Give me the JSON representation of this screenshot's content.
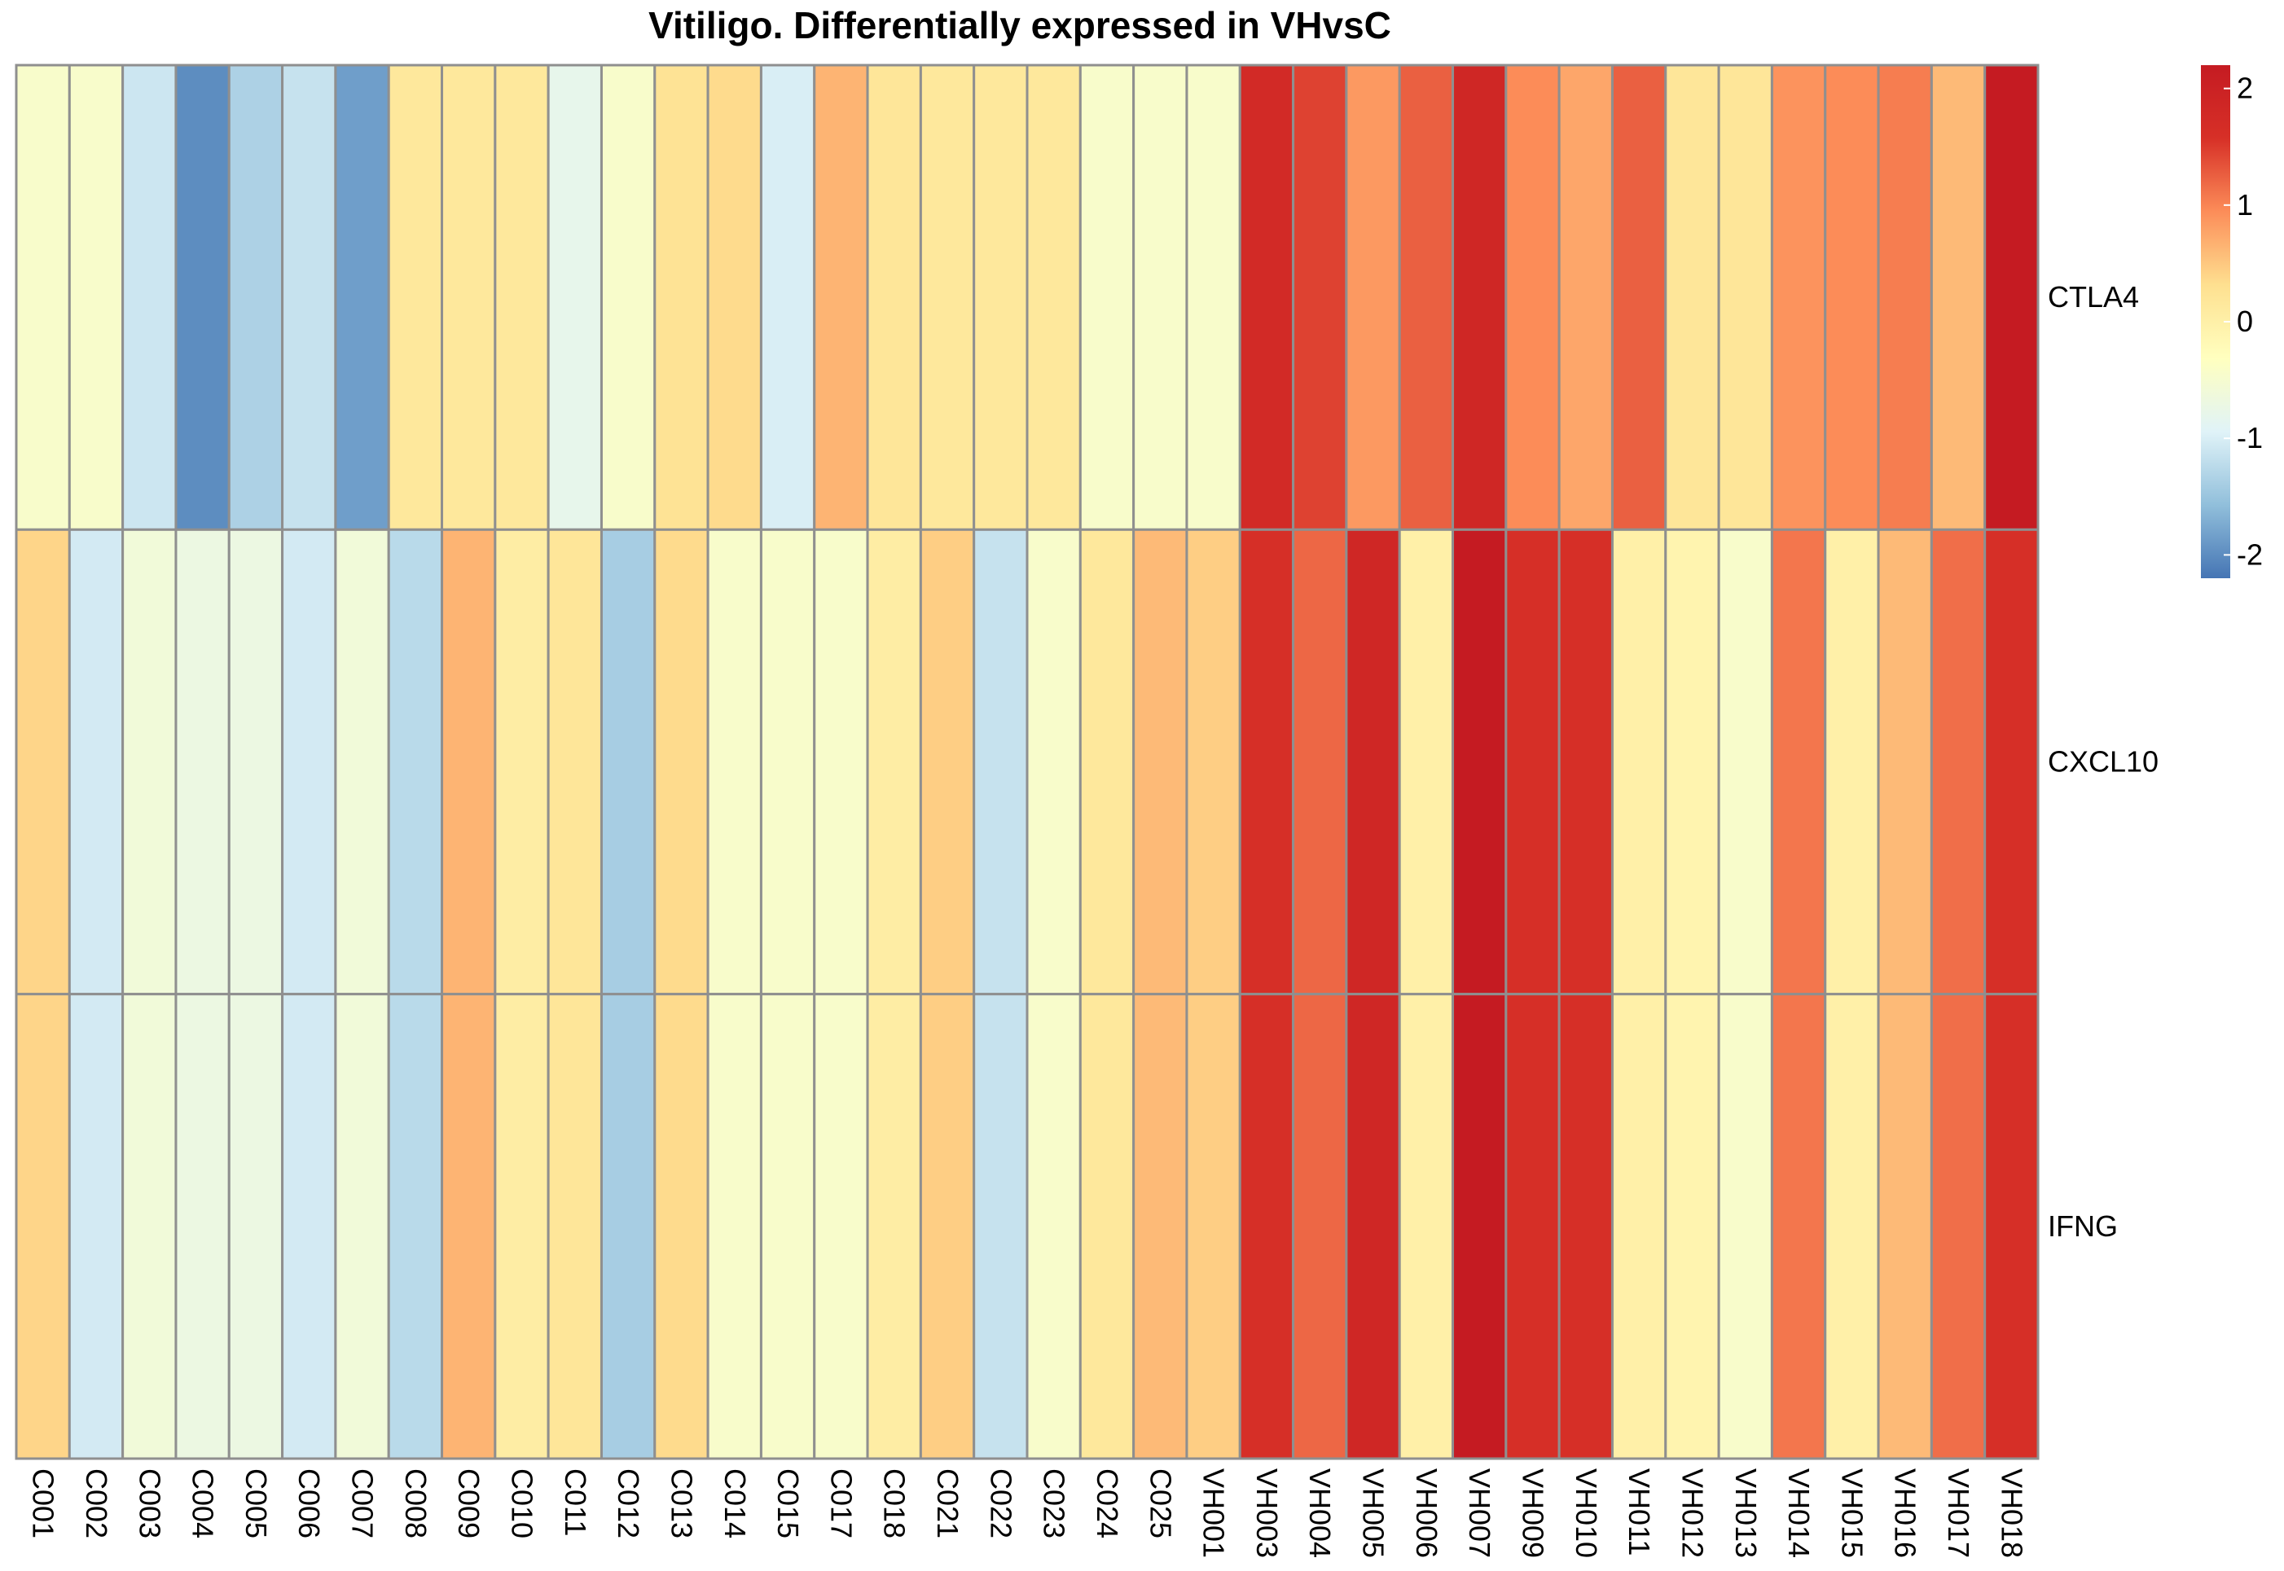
{
  "chart_data": {
    "type": "heatmap",
    "title": "Vitiligo. Differentially expressed in VHvsC",
    "rows": [
      "CTLA4",
      "CXCL10",
      "IFNG"
    ],
    "columns": [
      "C001",
      "C002",
      "C003",
      "C004",
      "C005",
      "C006",
      "C007",
      "C008",
      "C009",
      "C010",
      "C011",
      "C012",
      "C013",
      "C014",
      "C015",
      "C017",
      "C018",
      "C021",
      "C022",
      "C023",
      "C024",
      "C025",
      "VH001",
      "VH003",
      "VH004",
      "VH005",
      "VH006",
      "VH007",
      "VH009",
      "VH010",
      "VH011",
      "VH012",
      "VH013",
      "VH014",
      "VH015",
      "VH016",
      "VH017",
      "VH018"
    ],
    "values": [
      [
        -0.45,
        -0.45,
        -1.1,
        -2.0,
        -1.35,
        -1.15,
        -1.85,
        0.15,
        0.15,
        0.15,
        -0.8,
        -0.45,
        0.25,
        0.35,
        -1.0,
        0.65,
        0.2,
        0.15,
        0.15,
        0.15,
        -0.45,
        -0.45,
        -0.45,
        1.75,
        1.45,
        0.85,
        1.25,
        1.85,
        0.95,
        0.75,
        1.25,
        0.2,
        0.2,
        0.9,
        0.95,
        1.05,
        0.6,
        2.2
      ],
      [
        0.4,
        -1.05,
        -0.6,
        -0.7,
        -0.7,
        -1.05,
        -0.6,
        -1.25,
        0.65,
        0.05,
        0.2,
        -1.4,
        0.35,
        -0.45,
        -0.45,
        -0.45,
        0.05,
        0.45,
        -1.15,
        -0.45,
        0.15,
        0.6,
        0.45,
        1.6,
        1.2,
        1.85,
        0.0,
        2.25,
        1.6,
        1.6,
        0.0,
        -0.1,
        -0.45,
        1.1,
        0.0,
        0.6,
        1.15,
        1.6
      ],
      [
        0.4,
        -1.05,
        -0.6,
        -0.7,
        -0.7,
        -1.05,
        -0.6,
        -1.25,
        0.65,
        0.05,
        0.2,
        -1.4,
        0.35,
        -0.45,
        -0.45,
        -0.45,
        0.05,
        0.45,
        -1.15,
        -0.45,
        0.15,
        0.6,
        0.45,
        1.6,
        1.2,
        1.85,
        0.0,
        2.25,
        1.6,
        1.6,
        0.0,
        -0.1,
        -0.45,
        1.1,
        0.0,
        0.6,
        1.15,
        1.6
      ]
    ],
    "colorbar": {
      "min": -2.2,
      "max": 2.2,
      "ticks": [
        -2,
        -1,
        0,
        1,
        2
      ],
      "tick_labels": [
        "-2",
        "-1",
        "0",
        "1",
        "2"
      ],
      "colors": [
        "#4575B4",
        "#91BFDB",
        "#E0F3F8",
        "#FFFFBF",
        "#FEE090",
        "#FC8D59",
        "#D73027",
        "#C51B22"
      ]
    },
    "legend_position": "right",
    "grid": true
  }
}
